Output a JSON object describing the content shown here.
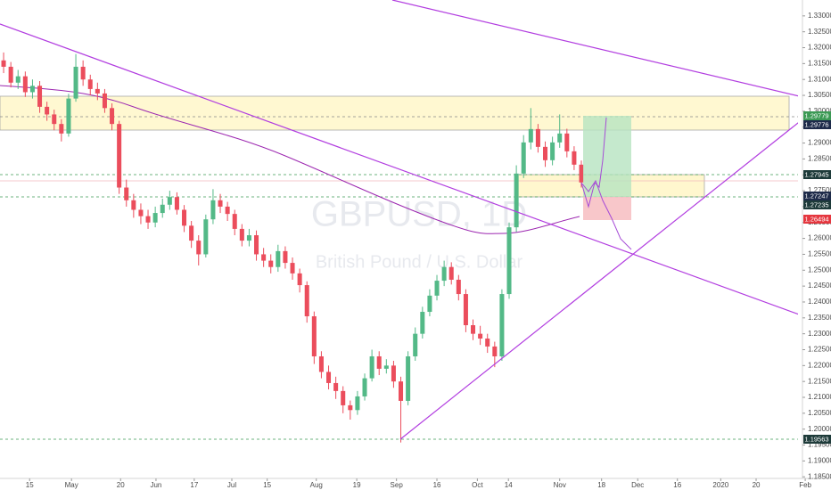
{
  "chart_data": {
    "type": "candlestick",
    "title": "GBPUSD, 1D",
    "subtitle": "British Pound / U.S. Dollar",
    "up_color": "#53b987",
    "down_color": "#eb4d5c",
    "grid": false,
    "xlim": [
      -0.5,
      110
    ],
    "ylim": [
      1.1845,
      1.335
    ],
    "open": [
      1.316,
      1.314,
      1.309,
      1.311,
      1.306,
      1.308,
      1.3014,
      1.299,
      1.296,
      1.293,
      1.304,
      1.314,
      1.31,
      1.307,
      1.3056,
      1.301,
      1.296,
      1.276,
      1.272,
      1.269,
      1.267,
      1.265,
      1.268,
      1.2706,
      1.273,
      1.269,
      1.264,
      1.2593,
      1.255,
      1.266,
      1.272,
      1.27,
      1.2677,
      1.263,
      1.2593,
      1.261,
      1.255,
      1.253,
      1.251,
      1.256,
      1.2523,
      1.249,
      1.2453,
      1.2355,
      1.2229,
      1.218,
      1.2145,
      1.212,
      1.2075,
      1.206,
      1.2103,
      1.216,
      1.2229,
      1.219,
      1.22,
      1.215,
      1.2089,
      1.2229,
      1.23,
      1.2369,
      1.242,
      1.2467,
      1.251,
      1.247,
      1.2425,
      1.2327,
      1.23,
      1.2285,
      1.226,
      1.2229,
      1.2425,
      1.2635,
      1.2804,
      1.2902,
      1.2944,
      1.2888,
      1.2846,
      1.2902,
      1.293,
      1.2874,
      1.2832
    ],
    "high": [
      1.3185,
      1.3155,
      1.313,
      1.3125,
      1.31,
      1.3095,
      1.303,
      1.3005,
      1.2975,
      1.3055,
      1.318,
      1.316,
      1.3115,
      1.309,
      1.307,
      1.3025,
      1.297,
      1.2785,
      1.274,
      1.271,
      1.269,
      1.27,
      1.2725,
      1.275,
      1.2745,
      1.2705,
      1.2655,
      1.261,
      1.2675,
      1.2755,
      1.274,
      1.2715,
      1.269,
      1.2645,
      1.263,
      1.2625,
      1.257,
      1.255,
      1.258,
      1.2575,
      1.254,
      1.2505,
      1.2465,
      1.237,
      1.2245,
      1.22,
      1.2165,
      1.2135,
      1.209,
      1.212,
      1.2175,
      1.225,
      1.2245,
      1.222,
      1.2215,
      1.2165,
      1.2245,
      1.232,
      1.2385,
      1.244,
      1.2485,
      1.253,
      1.2525,
      1.2485,
      1.244,
      1.2345,
      1.2325,
      1.23,
      1.2275,
      1.244,
      1.265,
      1.283,
      1.2925,
      1.301,
      1.296,
      1.2905,
      1.292,
      1.299,
      1.2945,
      1.289,
      1.2845
    ],
    "low": [
      1.312,
      1.3075,
      1.307,
      1.3045,
      1.304,
      1.2995,
      1.297,
      1.294,
      1.2905,
      1.292,
      1.303,
      1.308,
      1.305,
      1.3035,
      1.2995,
      1.294,
      1.274,
      1.27,
      1.2665,
      1.2645,
      1.263,
      1.2635,
      1.2665,
      1.269,
      1.2675,
      1.262,
      1.257,
      1.2515,
      1.254,
      1.2645,
      1.268,
      1.2655,
      1.261,
      1.2575,
      1.2575,
      1.253,
      1.251,
      1.249,
      1.2495,
      1.2505,
      1.247,
      1.243,
      1.2335,
      1.2205,
      1.216,
      1.2125,
      1.2095,
      1.205,
      1.203,
      1.2045,
      1.209,
      1.215,
      1.217,
      1.2175,
      1.213,
      1.1958,
      1.2075,
      1.2215,
      1.2285,
      1.2355,
      1.2405,
      1.245,
      1.2455,
      1.2405,
      1.2305,
      1.228,
      1.2265,
      1.224,
      1.2195,
      1.2215,
      1.241,
      1.262,
      1.279,
      1.288,
      1.287,
      1.2825,
      1.283,
      1.2885,
      1.2855,
      1.2815,
      1.276
    ],
    "close": [
      1.314,
      1.309,
      1.311,
      1.306,
      1.308,
      1.3014,
      1.299,
      1.296,
      1.293,
      1.304,
      1.314,
      1.31,
      1.307,
      1.3056,
      1.301,
      1.296,
      1.276,
      1.272,
      1.269,
      1.267,
      1.265,
      1.268,
      1.2706,
      1.273,
      1.269,
      1.264,
      1.2593,
      1.255,
      1.266,
      1.272,
      1.27,
      1.2677,
      1.263,
      1.2593,
      1.261,
      1.255,
      1.253,
      1.251,
      1.256,
      1.2523,
      1.249,
      1.2453,
      1.2355,
      1.2229,
      1.218,
      1.2145,
      1.212,
      1.2075,
      1.206,
      1.2103,
      1.216,
      1.2229,
      1.219,
      1.22,
      1.215,
      1.2089,
      1.2229,
      1.23,
      1.2369,
      1.242,
      1.2467,
      1.251,
      1.247,
      1.2425,
      1.2327,
      1.23,
      1.2285,
      1.226,
      1.2229,
      1.2425,
      1.2635,
      1.2804,
      1.2902,
      1.2944,
      1.2888,
      1.2846,
      1.2902,
      1.293,
      1.2874,
      1.2832,
      1.2776
    ],
    "xticks": [
      {
        "value": 3.6,
        "label": "15"
      },
      {
        "value": 9.4,
        "label": "May"
      },
      {
        "value": 16.2,
        "label": "20"
      },
      {
        "value": 21.1,
        "label": "Jun"
      },
      {
        "value": 26.4,
        "label": "17"
      },
      {
        "value": 31.6,
        "label": "Jul"
      },
      {
        "value": 36.5,
        "label": "15"
      },
      {
        "value": 43.3,
        "label": "Aug"
      },
      {
        "value": 48.9,
        "label": "19"
      },
      {
        "value": 54.4,
        "label": "Sep"
      },
      {
        "value": 60,
        "label": "16"
      },
      {
        "value": 65.6,
        "label": "Oct"
      },
      {
        "value": 69.9,
        "label": "14"
      },
      {
        "value": 77,
        "label": "Nov"
      },
      {
        "value": 82.8,
        "label": "18"
      },
      {
        "value": 87.8,
        "label": "Dec"
      },
      {
        "value": 93.3,
        "label": "16"
      },
      {
        "value": 99.3,
        "label": "2020"
      },
      {
        "value": 104.2,
        "label": "20"
      },
      {
        "value": 111,
        "label": "Feb"
      }
    ],
    "yticks": [
      {
        "value": 1.185,
        "label": "1.18500"
      },
      {
        "value": 1.19,
        "label": "1.19000"
      },
      {
        "value": 1.195,
        "label": "1.19500"
      },
      {
        "value": 1.2,
        "label": "1.20000"
      },
      {
        "value": 1.205,
        "label": "1.20500"
      },
      {
        "value": 1.21,
        "label": "1.21000"
      },
      {
        "value": 1.215,
        "label": "1.21500"
      },
      {
        "value": 1.22,
        "label": "1.22000"
      },
      {
        "value": 1.225,
        "label": "1.22500"
      },
      {
        "value": 1.23,
        "label": "1.23000"
      },
      {
        "value": 1.235,
        "label": "1.23500"
      },
      {
        "value": 1.24,
        "label": "1.24000"
      },
      {
        "value": 1.245,
        "label": "1.24500"
      },
      {
        "value": 1.25,
        "label": "1.25000"
      },
      {
        "value": 1.255,
        "label": "1.25500"
      },
      {
        "value": 1.26,
        "label": "1.26000"
      },
      {
        "value": 1.265,
        "label": "1.26500"
      },
      {
        "value": 1.27,
        "label": "1.27000"
      },
      {
        "value": 1.275,
        "label": "1.27500"
      },
      {
        "value": 1.28,
        "label": "1.28000"
      },
      {
        "value": 1.285,
        "label": "1.28500"
      },
      {
        "value": 1.29,
        "label": "1.29000"
      },
      {
        "value": 1.295,
        "label": "1.29500"
      },
      {
        "value": 1.3,
        "label": "1.30000"
      },
      {
        "value": 1.305,
        "label": "1.30500"
      },
      {
        "value": 1.31,
        "label": "1.31000"
      },
      {
        "value": 1.315,
        "label": "1.31500"
      },
      {
        "value": 1.32,
        "label": "1.32000"
      },
      {
        "value": 1.325,
        "label": "1.32500"
      },
      {
        "value": 1.33,
        "label": "1.33000"
      }
    ],
    "price_labels": [
      "1.29779",
      "1.29776",
      "1.27945",
      "1.27247",
      "1.27235",
      "1.26494",
      "1.19563"
    ]
  }
}
